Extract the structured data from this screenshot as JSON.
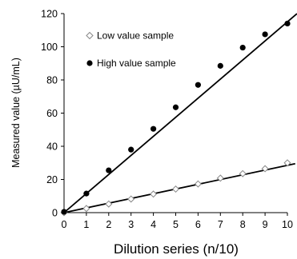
{
  "chart_data": {
    "type": "scatter",
    "xlabel": "Dilution series (n/10)",
    "ylabel": "Measured value (µU/mL)",
    "xlim": [
      0,
      10
    ],
    "ylim": [
      0,
      120
    ],
    "xticks": [
      0,
      1,
      2,
      3,
      4,
      5,
      6,
      7,
      8,
      9,
      10
    ],
    "yticks": [
      0,
      20,
      40,
      60,
      80,
      100,
      120
    ],
    "grid": false,
    "legend_placement": "top-left",
    "series": [
      {
        "name": "Low value sample",
        "marker": "open-diamond",
        "color": "#888888",
        "x": [
          0,
          1,
          2,
          3,
          4,
          5,
          6,
          7,
          8,
          9,
          10
        ],
        "y": [
          0,
          2.5,
          5.2,
          8.2,
          11.2,
          14.2,
          17.3,
          20.8,
          23.5,
          26.5,
          30
        ],
        "fit": {
          "slope": 2.85,
          "intercept": 0,
          "x_range": [
            0,
            10.35
          ]
        }
      },
      {
        "name": "High value sample",
        "marker": "filled-circle",
        "color": "#000000",
        "x": [
          0,
          1,
          2,
          3,
          4,
          5,
          6,
          7,
          8,
          9,
          10
        ],
        "y": [
          0.5,
          11.5,
          25.5,
          38,
          50.5,
          63.5,
          77,
          88.5,
          99.5,
          107.5,
          114
        ],
        "fit": {
          "slope": 11.5,
          "intercept": 0,
          "x_range": [
            0,
            10.43
          ]
        }
      }
    ]
  }
}
